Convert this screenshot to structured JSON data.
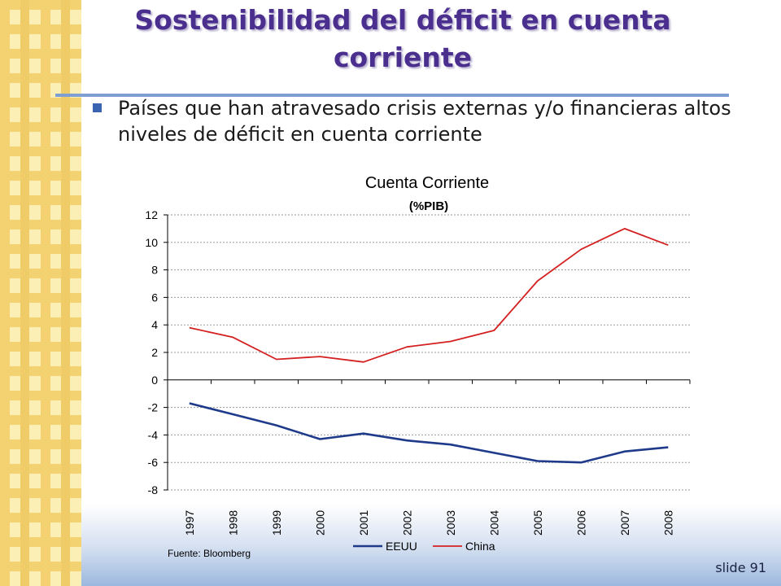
{
  "slide": {
    "title": "Sostenibilidad del déficit en cuenta corriente",
    "bullet": "Países que han atravesado crisis externas y/o financieras altos niveles de déficit en cuenta corriente",
    "slide_number": "slide 91",
    "colors": {
      "title": "#4a2f8f",
      "bullet": "#3a63b0",
      "rule": "#7f9fd2"
    }
  },
  "chart_data": {
    "type": "line",
    "title": "Cuenta Corriente",
    "subtitle": "(%PIB)",
    "source": "Fuente: Bloomberg",
    "x": [
      "1997",
      "1998",
      "1999",
      "2000",
      "2001",
      "2002",
      "2003",
      "2004",
      "2005",
      "2006",
      "2007",
      "2008"
    ],
    "ylim": [
      -8,
      12
    ],
    "yticks": [
      12,
      10,
      8,
      6,
      4,
      2,
      0,
      -2,
      -4,
      -6,
      -8
    ],
    "grid": true,
    "legend_position": "bottom",
    "series": [
      {
        "name": "EEUU",
        "color": "#1f3a8a",
        "values": [
          -1.7,
          -2.5,
          -3.3,
          -4.3,
          -3.9,
          -4.4,
          -4.7,
          -5.3,
          -5.9,
          -6.0,
          -5.2,
          -4.9
        ]
      },
      {
        "name": "China",
        "color": "#d42020",
        "values": [
          3.8,
          3.1,
          1.5,
          1.7,
          1.3,
          2.4,
          2.8,
          3.6,
          7.2,
          9.5,
          11.0,
          9.8
        ]
      }
    ]
  }
}
